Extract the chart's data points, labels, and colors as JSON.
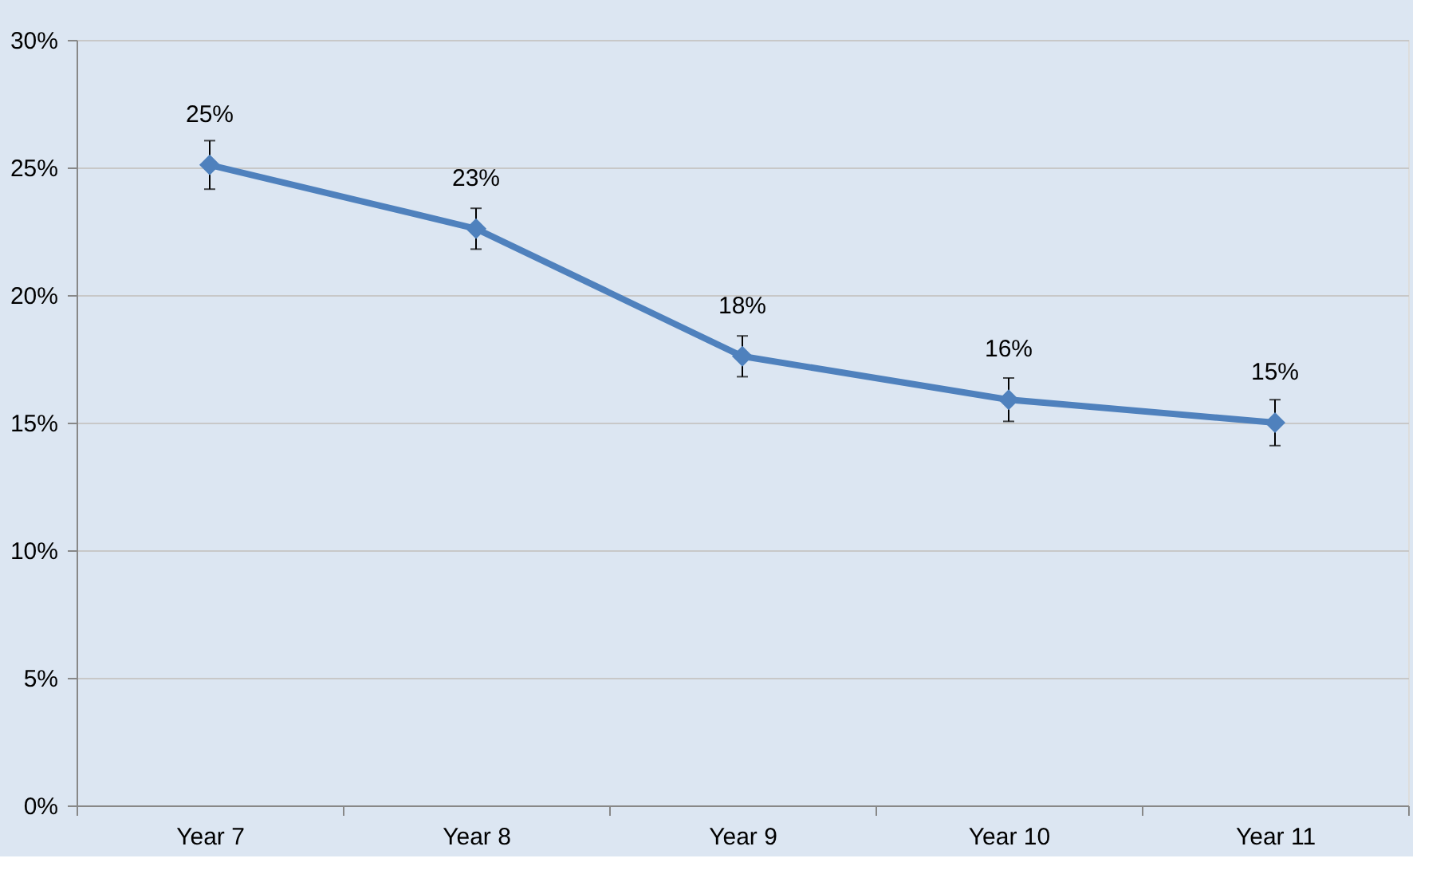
{
  "chart_data": {
    "type": "line",
    "categories": [
      "Year 7",
      "Year 8",
      "Year 9",
      "Year 10",
      "Year 11"
    ],
    "series": [
      {
        "color": "#4f81bd",
        "values": [
          25.1,
          22.6,
          17.6,
          15.9,
          15.0
        ],
        "errors": [
          0.95,
          0.8,
          0.8,
          0.85,
          0.9
        ],
        "value_labels": [
          "25%",
          "23%",
          "18%",
          "16%",
          "15%"
        ]
      }
    ],
    "ylim": [
      0,
      30
    ],
    "yticks": [
      {
        "value": 0,
        "label": "0%"
      },
      {
        "value": 5,
        "label": "5%"
      },
      {
        "value": 10,
        "label": "10%"
      },
      {
        "value": 15,
        "label": "15%"
      },
      {
        "value": 20,
        "label": "20%"
      },
      {
        "value": 25,
        "label": "25%"
      },
      {
        "value": 30,
        "label": "30%"
      }
    ],
    "grid": "y",
    "marker": "diamond",
    "legend": false
  }
}
